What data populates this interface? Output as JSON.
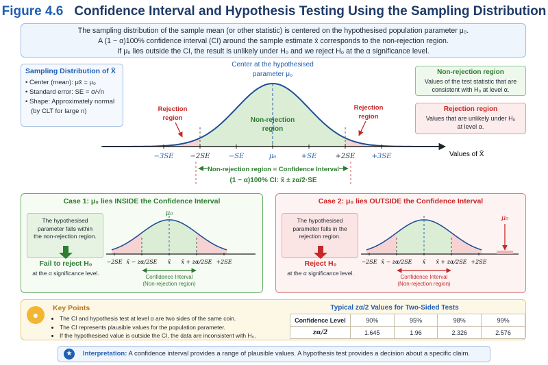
{
  "title": {
    "figure": "Figure 4.6",
    "text": "Confidence Interval and Hypothesis Testing Using the Sampling Distribution"
  },
  "intro": {
    "line1": "The sampling distribution of the sample mean (or other statistic) is centered on the hypothesised population parameter μ₀.",
    "line2": "A (1 − α)100% confidence interval (CI) around the sample estimate x̄ corresponds to the non-rejection region.",
    "line3": "If μ₀ lies outside the CI, the result is unlikely under H₀ and we reject H₀ at the α significance level."
  },
  "sd_box": {
    "heading": "Sampling Distribution of X̄",
    "center": "Center (mean):   μx̄ = μ₀",
    "se": "Standard error:   SE = σ/√n",
    "shape1": "Shape: Approximately normal",
    "shape2": "(by CLT for large n)"
  },
  "main_chart": {
    "center_label1": "Center at the hypothesised",
    "center_label2": "parameter μ₀",
    "nonrej_label1": "Non-rejection",
    "nonrej_label2": "region",
    "rej_left1": "Rejection",
    "rej_left2": "region",
    "rej_right1": "Rejection",
    "rej_right2": "region",
    "ticks": [
      "−3SE",
      "−2SE",
      "−SE",
      "μ₀",
      "+SE",
      "+2SE",
      "+3SE"
    ],
    "axis_label": "Values of X̄",
    "ci_label": "Non-rejection region = Confidence Interval",
    "ci_formula": "(1 − α)100% CI:  x̄ ± zα/2·SE"
  },
  "nonrej_box": {
    "heading": "Non-rejection region",
    "text1": "Values of the test statistic that are",
    "text2": "consistent with H₀ at level α."
  },
  "rej_box": {
    "heading": "Rejection region",
    "text1": "Values that are unlikely under H₀",
    "text2": "at level α."
  },
  "case1": {
    "title": "Case 1: μ₀ lies INSIDE the Confidence Interval",
    "note1": "The hypothesised",
    "note2": "parameter falls within",
    "note3": "the non-rejection region.",
    "verdict": "Fail to reject H₀",
    "verdict_sub": "at the α significance level.",
    "mu_label": "μ₀",
    "ticks": [
      "−2SE",
      "x̄ − zα/2SE",
      "x̄",
      "x̄ + zα/2SE",
      "+2SE"
    ],
    "ci1": "Confidence Interval",
    "ci2": "(Non-rejection region)"
  },
  "case2": {
    "title": "Case 2: μ₀ lies OUTSIDE the Confidence Interval",
    "note1": "The hypothesised",
    "note2": "parameter falls in the",
    "note3": "rejection region.",
    "verdict": "Reject H₀",
    "verdict_sub": "at the α significance level.",
    "mu_label": "μ₀",
    "ticks": [
      "−2SE",
      "x̄ − zα/2SE",
      "x̄",
      "x̄ + zα/2SE",
      "+2SE"
    ],
    "ci1": "Confidence Interval",
    "ci2": "(Non-rejection region)"
  },
  "key_points": {
    "heading": "Key Points",
    "items": [
      "The CI and hypothesis test at level α are two sides of the same coin.",
      "The CI represents plausible values for the population parameter.",
      "If the hypothesised value is outside the CI, the data are inconsistent with H₀."
    ]
  },
  "table": {
    "title": "Typical zα/2 Values for Two-Sided Tests",
    "row1_label": "Confidence Level",
    "levels": [
      "90%",
      "95%",
      "98%",
      "99%"
    ],
    "row2_label": "zα/2",
    "z": [
      "1.645",
      "1.96",
      "2.326",
      "2.576"
    ]
  },
  "interpretation": {
    "label": "Interpretation:",
    "text": "A confidence interval provides a range of plausible values. A hypothesis test provides a decision about a specific claim."
  },
  "colors": {
    "accent": "#1f5fb3",
    "green": "#2e7d32",
    "red": "#c62828",
    "curve": "#1f4f96",
    "green_fill": "#dcedd6",
    "red_fill": "#f6d3d3"
  }
}
